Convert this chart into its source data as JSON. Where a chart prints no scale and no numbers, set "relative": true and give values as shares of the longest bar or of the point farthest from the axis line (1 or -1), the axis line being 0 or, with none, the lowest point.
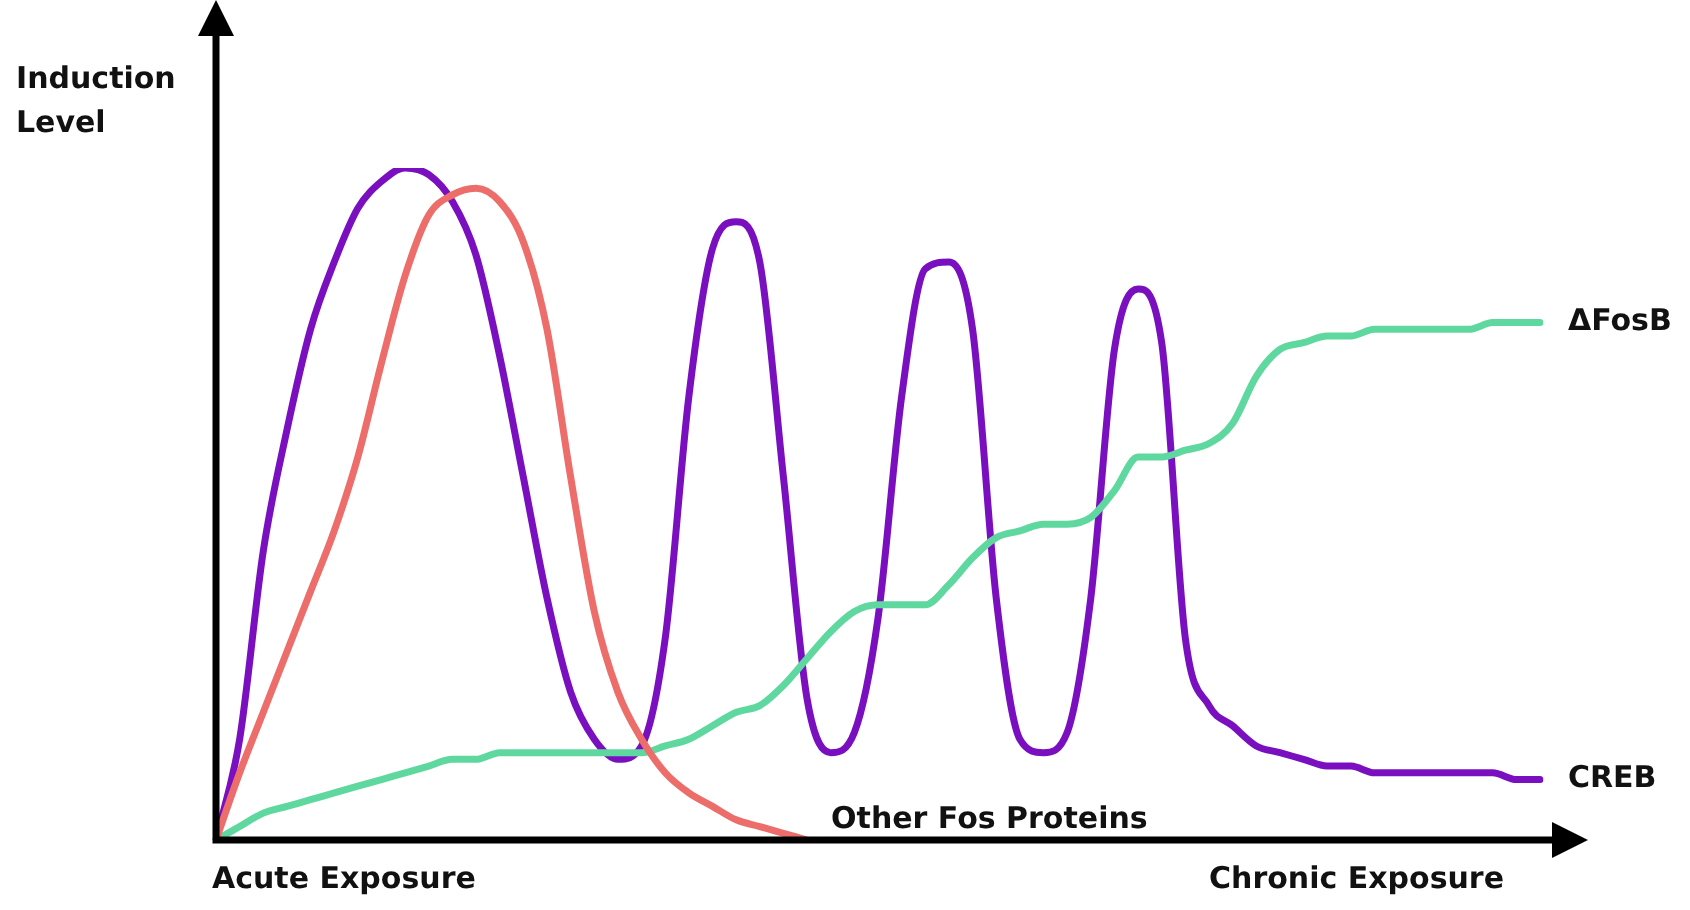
{
  "chart_data": {
    "type": "line",
    "relative": true,
    "ylabel": "Induction Level",
    "annotations": [
      "Acute Exposure",
      "Chronic Exposure"
    ],
    "legend": false,
    "marker": "none",
    "line_style": "solid",
    "categories": [
      null,
      null,
      null,
      null,
      null,
      null,
      null,
      null,
      null,
      null,
      null,
      null,
      null,
      null,
      null,
      null,
      null,
      null,
      null,
      null,
      null,
      null,
      null,
      null,
      null,
      null,
      null,
      null,
      null,
      null,
      null,
      null,
      null,
      null,
      null,
      null,
      null,
      null,
      null,
      null,
      null,
      null,
      null,
      null,
      null,
      null,
      null,
      null,
      null,
      null,
      null,
      null,
      null,
      null,
      null,
      null,
      null
    ],
    "series": [
      {
        "name": "Other Fos Proteins",
        "color": "#ec6d6a",
        "values": [
          0,
          0.1,
          0.19,
          0.28,
          0.37,
          0.46,
          0.57,
          0.71,
          0.84,
          0.93,
          0.96,
          0.97,
          0.95,
          0.89,
          0.76,
          0.54,
          0.34,
          0.22,
          0.15,
          0.1,
          0.07,
          0.05,
          0.03,
          0.02,
          0.01,
          0.0,
          null,
          null,
          null,
          null,
          null,
          null,
          null,
          null,
          null,
          null,
          null,
          null,
          null,
          null,
          null,
          null,
          null,
          null,
          null,
          null,
          null,
          null,
          null,
          null,
          null,
          null,
          null,
          null,
          null,
          null,
          null
        ]
      },
      {
        "name": "ΔFosB",
        "color": "#5fd8a0",
        "values": [
          0,
          0.02,
          0.04,
          0.05,
          0.06,
          0.07,
          0.08,
          0.09,
          0.1,
          0.11,
          0.12,
          0.12,
          0.13,
          0.13,
          0.13,
          0.13,
          0.13,
          0.13,
          0.13,
          0.14,
          0.15,
          0.17,
          0.19,
          0.2,
          0.23,
          0.27,
          0.31,
          0.34,
          0.35,
          0.35,
          0.35,
          0.38,
          0.42,
          0.45,
          0.46,
          0.47,
          0.47,
          0.48,
          0.52,
          0.57,
          0.57,
          0.58,
          0.59,
          0.62,
          0.69,
          0.73,
          0.74,
          0.75,
          0.75,
          0.76,
          0.76,
          0.76,
          0.76,
          0.76,
          0.77,
          0.77,
          0.77
        ]
      },
      {
        "name": "CREB",
        "color": "#7a0fc0",
        "values": [
          0,
          0.15,
          0.43,
          0.61,
          0.76,
          0.86,
          0.94,
          0.98,
          1,
          0.99,
          0.95,
          0.87,
          0.72,
          0.54,
          0.36,
          0.22,
          0.15,
          0.12,
          0.14,
          0.3,
          0.66,
          0.88,
          0.92,
          0.86,
          0.54,
          0.21,
          0.13,
          0.16,
          0.33,
          0.66,
          0.85,
          0.86,
          0.76,
          0.36,
          0.15,
          0.13,
          0.16,
          0.36,
          0.73,
          0.82,
          0.74,
          0.3,
          0.2,
          0.17,
          0.14,
          0.13,
          0.12,
          0.11,
          0.11,
          0.1,
          0.1,
          0.1,
          0.1,
          0.1,
          0.1,
          0.09,
          0.09
        ]
      }
    ]
  }
}
